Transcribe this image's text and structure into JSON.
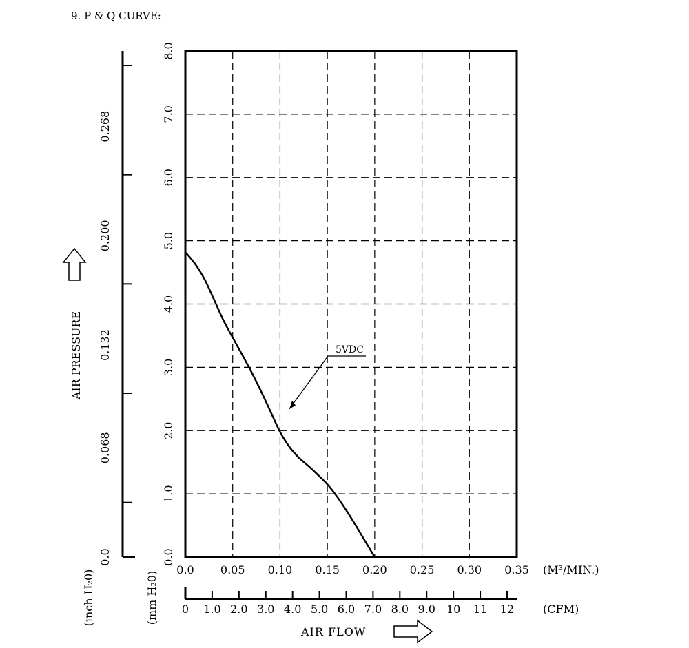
{
  "page": {
    "heading": "9. P & Q CURVE:"
  },
  "chart_data": {
    "type": "line",
    "title": "",
    "x": {
      "label": "AIR FLOW",
      "unit": "(M³/MIN.)",
      "range": [
        0,
        0.35
      ],
      "ticks": [
        "0.0",
        "0.05",
        "0.10",
        "0.15",
        "0.20",
        "0.25",
        "0.30",
        "0.35"
      ]
    },
    "x_secondary": {
      "unit": "(CFM)",
      "range": [
        0,
        12.36
      ],
      "ticks": [
        "0",
        "1.0",
        "2.0",
        "3.0",
        "4.0",
        "5.0",
        "6.0",
        "7.0",
        "8.0",
        "9.0",
        "10",
        "11",
        "12"
      ]
    },
    "y": {
      "label": "AIR PRESSURE",
      "unit": "(mm H₂0)",
      "range": [
        0,
        8.0
      ],
      "ticks": [
        "0.0",
        "1.0",
        "2.0",
        "3.0",
        "4.0",
        "5.0",
        "6.0",
        "7.0",
        "8.0"
      ]
    },
    "y_secondary": {
      "unit": "(inch H₂0)",
      "range": [
        0,
        0.315
      ],
      "ticks": [
        "0.0",
        "0.068",
        "0.132",
        "0.200",
        "0.268"
      ]
    },
    "grid": true,
    "series": [
      {
        "name": "5VDC",
        "color": "#000000",
        "points": [
          [
            0.0,
            4.82
          ],
          [
            0.01,
            4.64
          ],
          [
            0.02,
            4.4
          ],
          [
            0.03,
            4.08
          ],
          [
            0.04,
            3.75
          ],
          [
            0.05,
            3.47
          ],
          [
            0.06,
            3.2
          ],
          [
            0.07,
            2.92
          ],
          [
            0.08,
            2.62
          ],
          [
            0.09,
            2.3
          ],
          [
            0.1,
            1.98
          ],
          [
            0.11,
            1.74
          ],
          [
            0.12,
            1.57
          ],
          [
            0.13,
            1.44
          ],
          [
            0.14,
            1.3
          ],
          [
            0.15,
            1.15
          ],
          [
            0.16,
            0.96
          ],
          [
            0.17,
            0.74
          ],
          [
            0.18,
            0.5
          ],
          [
            0.19,
            0.25
          ],
          [
            0.2,
            0.0
          ]
        ]
      }
    ]
  }
}
